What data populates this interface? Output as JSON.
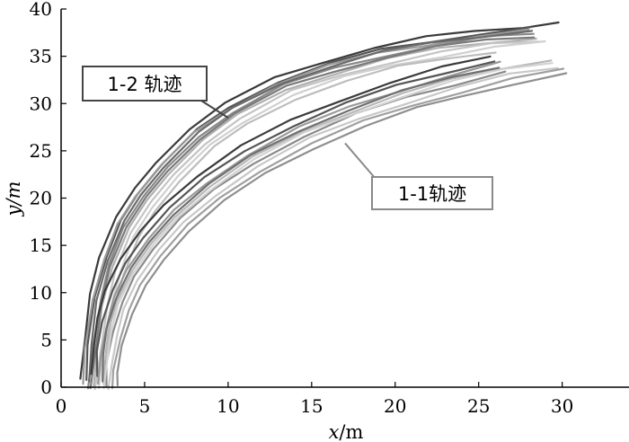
{
  "chart_data": {
    "type": "line",
    "xlim": [
      0,
      34
    ],
    "ylim": [
      0,
      40
    ],
    "xticks": [
      0,
      5,
      10,
      15,
      20,
      25,
      30
    ],
    "yticks": [
      0,
      5,
      10,
      15,
      20,
      25,
      30,
      35,
      40
    ],
    "x_tick_labels": [
      "0",
      "5",
      "10",
      "15",
      "20",
      "25",
      "30"
    ],
    "y_tick_labels": [
      "0",
      "5",
      "10",
      "15",
      "20",
      "25",
      "30",
      "35",
      "40"
    ],
    "xlabel": {
      "var": "x",
      "unit": "/m"
    },
    "ylabel": {
      "var": "y",
      "unit": "/m"
    },
    "grid": false,
    "groups": [
      {
        "label": "1-2 轨迹",
        "label_color": "#444444",
        "anchor": {
          "x": 10,
          "y": 28.5
        },
        "base_curve": [
          [
            1.4,
            0
          ],
          [
            1.6,
            4
          ],
          [
            2.0,
            9
          ],
          [
            2.6,
            13
          ],
          [
            3.5,
            17
          ],
          [
            4.6,
            20
          ],
          [
            6.0,
            23
          ],
          [
            8.0,
            26.5
          ],
          [
            10.0,
            29
          ],
          [
            13.0,
            31.8
          ],
          [
            16.0,
            33.6
          ],
          [
            19.0,
            35
          ],
          [
            22.0,
            36
          ],
          [
            25.0,
            36.8
          ],
          [
            28.0,
            37.3
          ],
          [
            30.0,
            37.6
          ]
        ],
        "series": [
          {
            "dx": -0.25,
            "dy": 0.9,
            "end_x": 29.9,
            "color": "#3a3a3a"
          },
          {
            "dx": 0.05,
            "dy": 0.6,
            "end_x": 30.0,
            "color": "#555555"
          },
          {
            "dx": 0.3,
            "dy": 0.1,
            "end_x": 29.2,
            "color": "#888888"
          },
          {
            "dx": 0.5,
            "dy": -0.3,
            "end_x": 28.5,
            "color": "#b0b0b0"
          },
          {
            "dx": -0.1,
            "dy": 0.3,
            "end_x": 29.6,
            "color": "#9a9a9a"
          },
          {
            "dx": 0.7,
            "dy": -0.6,
            "end_x": 30.0,
            "color": "#c4c4c4"
          },
          {
            "dx": 0.2,
            "dy": 0.4,
            "end_x": 28.8,
            "color": "#6a6a6a"
          },
          {
            "dx": 0.9,
            "dy": -0.9,
            "end_x": 29.4,
            "color": "#d0d0d0"
          },
          {
            "dx": 0.4,
            "dy": -0.1,
            "end_x": 30.0,
            "color": "#7a7a7a"
          },
          {
            "dx": 1.1,
            "dy": -1.2,
            "end_x": 29.0,
            "color": "#bdbdbd"
          }
        ]
      },
      {
        "label": "1-1轨迹",
        "label_color": "#8a8a8a",
        "anchor": {
          "x": 17,
          "y": 25.8
        },
        "base_curve": [
          [
            2.1,
            0
          ],
          [
            2.2,
            3
          ],
          [
            2.5,
            6
          ],
          [
            3.0,
            9
          ],
          [
            3.8,
            12
          ],
          [
            5.0,
            15
          ],
          [
            6.5,
            18
          ],
          [
            8.5,
            21
          ],
          [
            11.0,
            24
          ],
          [
            14.0,
            26.8
          ],
          [
            17.0,
            29
          ],
          [
            20.0,
            30.8
          ],
          [
            23.0,
            32.3
          ],
          [
            26.0,
            33.6
          ],
          [
            29.0,
            34.5
          ],
          [
            31.0,
            34.9
          ]
        ],
        "series": [
          {
            "dx": -0.3,
            "dy": 1.4,
            "end_x": 27.5,
            "color": "#3a3a3a"
          },
          {
            "dx": 0.0,
            "dy": 1.0,
            "end_x": 28.0,
            "color": "#555555"
          },
          {
            "dx": 0.2,
            "dy": 0.6,
            "end_x": 29.0,
            "color": "#999999"
          },
          {
            "dx": 0.4,
            "dy": 0.2,
            "end_x": 30.0,
            "color": "#b8b8b8"
          },
          {
            "dx": 0.6,
            "dy": -0.2,
            "end_x": 29.5,
            "color": "#8a8a8a"
          },
          {
            "dx": 0.8,
            "dy": -0.6,
            "end_x": 31.2,
            "color": "#c8c8c8"
          },
          {
            "dx": 0.3,
            "dy": 0.4,
            "end_x": 28.5,
            "color": "#6f6f6f"
          },
          {
            "dx": 1.0,
            "dy": -1.0,
            "end_x": 30.5,
            "color": "#a0a0a0"
          },
          {
            "dx": 0.5,
            "dy": 0.0,
            "end_x": 29.8,
            "color": "#d2d2d2"
          },
          {
            "dx": 1.2,
            "dy": -1.4,
            "end_x": 31.0,
            "color": "#8f8f8f"
          }
        ]
      }
    ]
  }
}
